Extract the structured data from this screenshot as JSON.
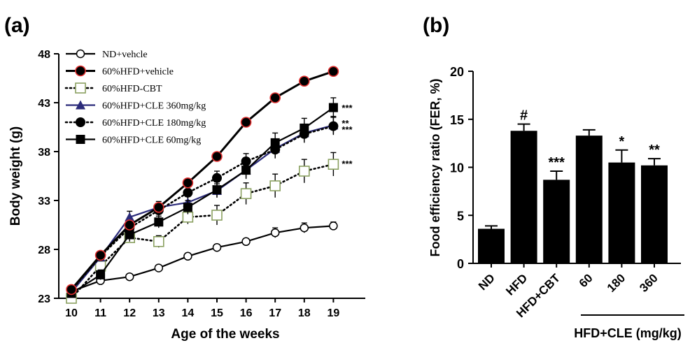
{
  "chart_data": [
    {
      "panel_label": "(a)",
      "type": "line",
      "xlabel": "Age of the weeks",
      "ylabel": "Body weight (g)",
      "ylim": [
        23,
        48
      ],
      "yticks": [
        23,
        28,
        33,
        38,
        43,
        48
      ],
      "x": [
        10,
        11,
        12,
        13,
        14,
        15,
        16,
        17,
        18,
        19
      ],
      "legend_position": "top-left",
      "series": [
        {
          "name": "ND+vehcle",
          "marker": "open-circle",
          "line": "solid",
          "color": "#000000",
          "values": [
            23.7,
            24.8,
            25.2,
            26.1,
            27.3,
            28.2,
            28.8,
            29.7,
            30.2,
            30.4
          ],
          "err": [
            0.2,
            0.2,
            0.2,
            0.2,
            0.2,
            0.3,
            0.3,
            0.5,
            0.5,
            0.4
          ]
        },
        {
          "name": "60%HFD+vehicle",
          "marker": "red-edged-circle",
          "line": "solid-thick",
          "color": "#000000",
          "values": [
            23.9,
            27.4,
            30.5,
            32.3,
            34.8,
            37.5,
            41.0,
            43.5,
            45.2,
            46.2
          ],
          "err": [
            0.3,
            0.3,
            0.4,
            0.3,
            0.3,
            0.3,
            0.4,
            0.3,
            0.3,
            0.3
          ]
        },
        {
          "name": "60%HFD-CBT",
          "marker": "open-square",
          "line": "dotted",
          "color": "#8aa060",
          "values": [
            23.0,
            26.3,
            29.2,
            28.8,
            31.3,
            31.5,
            33.7,
            34.5,
            36.0,
            36.7
          ],
          "err": [
            0.3,
            0.4,
            0.5,
            0.6,
            0.7,
            1.0,
            1.1,
            1.2,
            1.2,
            1.2
          ],
          "sig": "***"
        },
        {
          "name": "60%HFD+CLE 360mg/kg",
          "marker": "triangle",
          "line": "solid",
          "color": "#2b2b7a",
          "values": [
            23.6,
            27.2,
            31.3,
            32.3,
            32.8,
            34.0,
            36.1,
            38.3,
            39.9,
            40.7
          ],
          "err": [
            0.3,
            0.4,
            0.6,
            0.6,
            0.6,
            0.7,
            0.8,
            0.9,
            0.9,
            0.9
          ],
          "sig": "***"
        },
        {
          "name": "60%HFD+CLE 180mg/kg",
          "marker": "filled-circle",
          "line": "dotted",
          "color": "#000000",
          "values": [
            23.8,
            27.3,
            30.2,
            32.0,
            33.8,
            35.3,
            37.0,
            38.2,
            39.8,
            40.6
          ],
          "err": [
            0.3,
            0.4,
            0.6,
            0.6,
            0.6,
            0.7,
            0.8,
            0.9,
            0.9,
            0.9
          ],
          "sig": "**"
        },
        {
          "name": "60%HFD+CLE 60mg/kg",
          "marker": "filled-square",
          "line": "solid",
          "color": "#000000",
          "values": [
            23.5,
            25.4,
            29.5,
            30.8,
            32.3,
            34.1,
            36.1,
            38.9,
            40.4,
            42.5
          ],
          "err": [
            0.3,
            0.5,
            0.7,
            0.6,
            0.7,
            0.8,
            0.9,
            1.0,
            1.0,
            1.0
          ],
          "sig": "***"
        }
      ]
    },
    {
      "panel_label": "(b)",
      "type": "bar",
      "ylabel": "Food efficiency ratio (FER, %)",
      "ylim": [
        0,
        20
      ],
      "yticks": [
        0,
        5,
        10,
        15,
        20
      ],
      "categories": [
        "ND",
        "HFD",
        "HFD+CBT",
        "60",
        "180",
        "360"
      ],
      "values": [
        3.6,
        13.8,
        8.7,
        13.3,
        10.5,
        10.2
      ],
      "err": [
        0.3,
        0.7,
        0.9,
        0.6,
        1.3,
        0.7
      ],
      "annotations": [
        "",
        "#",
        "***",
        "",
        "*",
        "**"
      ],
      "group_label": "HFD+CLE (mg/kg)"
    }
  ]
}
